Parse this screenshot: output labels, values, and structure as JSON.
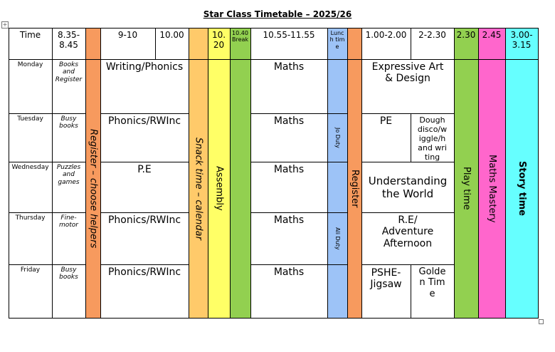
{
  "title": "Star Class Timetable – 2025/26",
  "header": [
    "Time",
    "8.35-8.45",
    "9-10",
    "10.00",
    "10.20",
    "10.40 Break",
    "10.55-11.55",
    "Lunch time",
    "1.00-2.00",
    "2-2.30",
    "2.30",
    "2.45",
    "3.00-3.15"
  ],
  "days": [
    {
      "day": "Monday",
      "early": "Books and Register",
      "morning": "Writing/Phonics",
      "maths": "Maths",
      "afternoon": [
        "Expressive Art & Design"
      ]
    },
    {
      "day": "Tuesday",
      "early": "Busy books",
      "morning": "Phonics/RWInc",
      "maths": "Maths",
      "lunch_duty": "Jo Duty",
      "afternoon": [
        "PE",
        "Dough disco/wiggle/hand writing"
      ]
    },
    {
      "day": "Wednesday",
      "early": "Puzzles and games",
      "morning": "P.E",
      "maths": "Maths",
      "afternoon": [
        "Understanding the World"
      ]
    },
    {
      "day": "Thursday",
      "early": "Fine-motor",
      "morning": "Phonics/RWInc",
      "maths": "Maths",
      "lunch_duty": "Ali Duty",
      "afternoon": [
        "R.E/ Adventure Afternoon"
      ]
    },
    {
      "day": "Friday",
      "early": "Busy books",
      "morning": "Phonics/RWInc",
      "maths": "Maths",
      "afternoon": [
        "PSHE-Jigsaw",
        "Golden Time"
      ]
    }
  ],
  "vertical": {
    "register_am": "Register – choose helpers",
    "snack": "Snack time – calendar",
    "assembly": "Assembly",
    "register_pm": "Register",
    "play": "Play time",
    "mastery": "Maths Mastery",
    "story": "Story time"
  }
}
